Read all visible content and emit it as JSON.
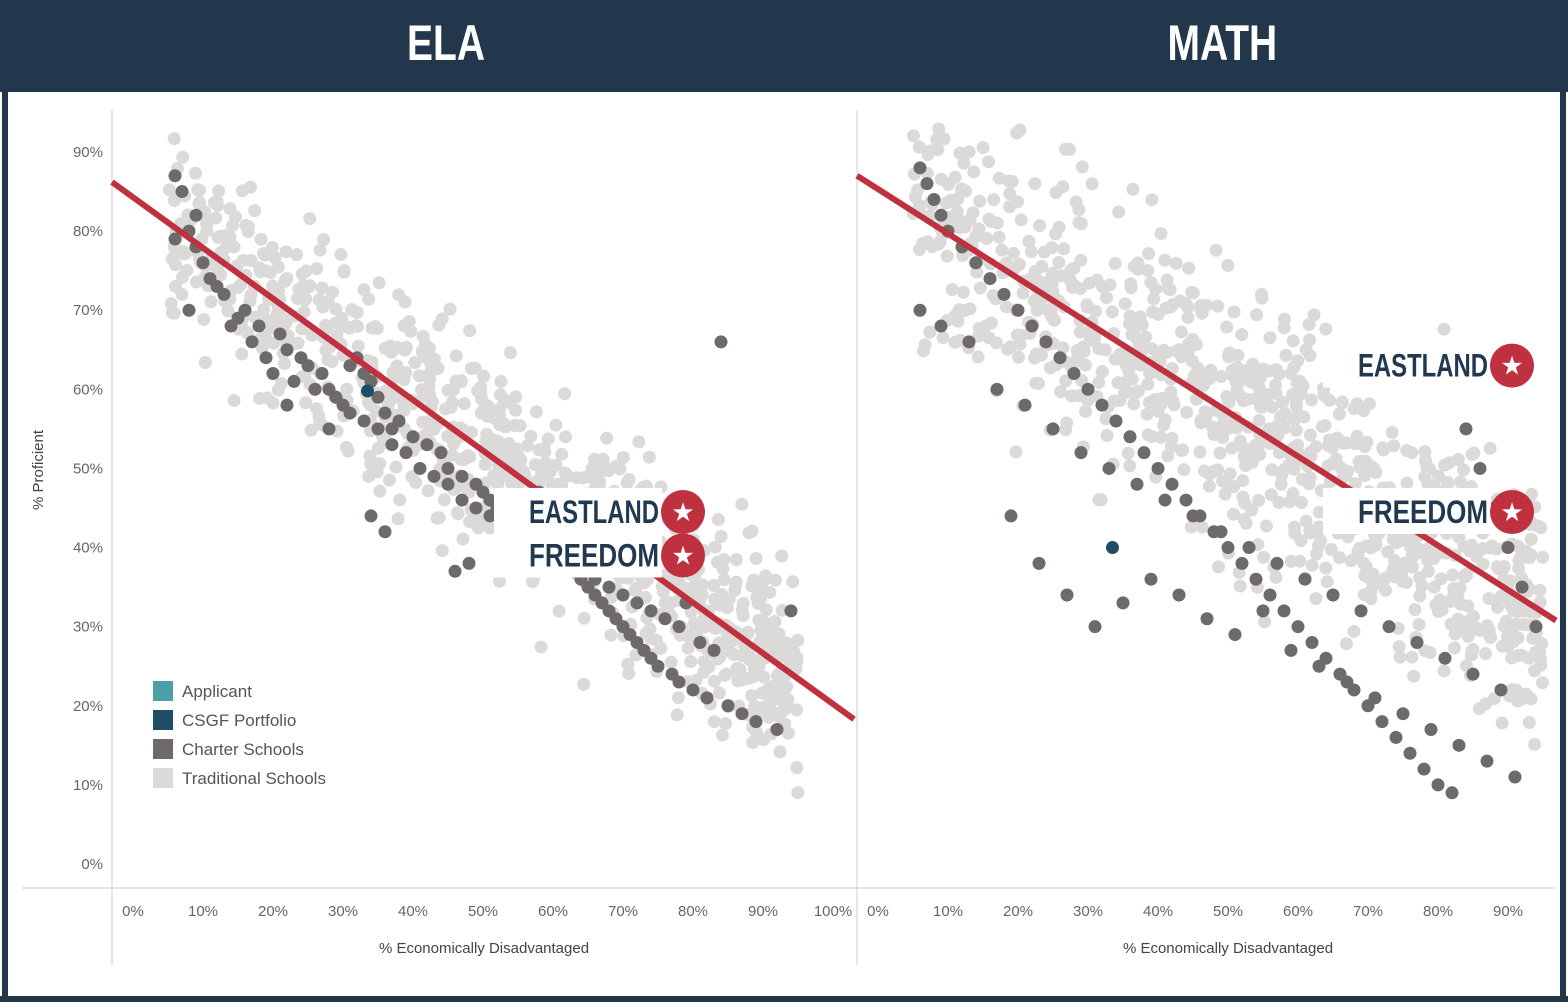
{
  "colors": {
    "header_bg": "#22374c",
    "frame": "#22374c",
    "trend": "#c0313f",
    "applicant": "#4a9fa8",
    "portfolio": "#1e4d66",
    "charter": "#6d6a69",
    "traditional": "#dcd9d9",
    "callout_text": "#223851",
    "star_badge": "#c0313f"
  },
  "header": {
    "left_title": "ELA",
    "right_title": "MATH"
  },
  "legend": [
    {
      "label": "Applicant",
      "color": "#4a9fa8"
    },
    {
      "label": "CSGF Portfolio",
      "color": "#1e4d66"
    },
    {
      "label": "Charter Schools",
      "color": "#6d6a69"
    },
    {
      "label": "Traditional Schools",
      "color": "#dcd9d9"
    }
  ],
  "chart_data": [
    {
      "type": "scatter",
      "title": "ELA",
      "xlabel": "% Economically Disadvantaged",
      "ylabel": "% Proficient",
      "xlim": [
        0,
        100
      ],
      "ylim": [
        0,
        90
      ],
      "x_ticks": [
        "0%",
        "10%",
        "20%",
        "30%",
        "40%",
        "50%",
        "60%",
        "70%",
        "80%",
        "90%",
        "100%"
      ],
      "y_ticks": [
        "0%",
        "10%",
        "20%",
        "30%",
        "40%",
        "50%",
        "60%",
        "70%",
        "80%",
        "90%"
      ],
      "grid": false,
      "legend_position": "bottom-left",
      "trendline": {
        "x": [
          -3,
          103
        ],
        "y": [
          86.2,
          18.3
        ]
      },
      "series": [
        {
          "name": "CSGF Portfolio",
          "x": [
            33.5
          ],
          "y": [
            59.8
          ]
        },
        {
          "name": "Charter Schools",
          "x": [
            6,
            7,
            8,
            9,
            10,
            11,
            13,
            16,
            18,
            21,
            22,
            24,
            25,
            27,
            28,
            29,
            30,
            31,
            32,
            33,
            34,
            35,
            36,
            37,
            38,
            40,
            42,
            44,
            45,
            47,
            49,
            50,
            51,
            52,
            53,
            55,
            57,
            59,
            60,
            61,
            62,
            63,
            64,
            65,
            66,
            67,
            68,
            69,
            70,
            71,
            72,
            73,
            74,
            75,
            77,
            78,
            80,
            82,
            85,
            87,
            89,
            92,
            6,
            9,
            12,
            15,
            17,
            19,
            20,
            23,
            26,
            29,
            31,
            33,
            35,
            37,
            39,
            41,
            43,
            45,
            47,
            49,
            51,
            53,
            55,
            58,
            60,
            62,
            64,
            66,
            68,
            70,
            72,
            74,
            76,
            78,
            81,
            83,
            8,
            14,
            22,
            28,
            34,
            36,
            46,
            48,
            58,
            63,
            71,
            79,
            84,
            94
          ],
          "y": [
            87,
            85,
            80,
            78,
            76,
            74,
            72,
            70,
            68,
            67,
            65,
            64,
            63,
            62,
            60,
            59,
            58,
            63,
            64,
            62,
            61,
            59,
            57,
            55,
            56,
            54,
            53,
            52,
            50,
            49,
            48,
            47,
            46,
            45,
            44,
            43,
            42,
            41,
            40,
            39,
            38,
            37,
            36,
            35,
            34,
            33,
            32,
            31,
            30,
            29,
            28,
            27,
            26,
            25,
            24,
            23,
            22,
            21,
            20,
            19,
            18,
            17,
            79,
            82,
            73,
            69,
            66,
            64,
            62,
            61,
            60,
            59,
            57,
            56,
            55,
            53,
            52,
            50,
            49,
            48,
            46,
            45,
            44,
            42,
            41,
            40,
            39,
            38,
            37,
            36,
            35,
            34,
            33,
            32,
            31,
            30,
            28,
            27,
            70,
            68,
            58,
            55,
            44,
            42,
            37,
            38,
            47,
            41,
            46,
            33,
            66,
            32
          ],
          "color_key": "charter"
        },
        {
          "name": "Traditional Schools",
          "color_key": "traditional",
          "generated": true
        }
      ],
      "callouts": [
        {
          "label": "EASTLAND",
          "x": 78,
          "y": 44.5
        },
        {
          "label": "FREEDOM",
          "x": 78,
          "y": 39.0
        }
      ]
    },
    {
      "type": "scatter",
      "title": "MATH",
      "xlabel": "% Economically Disadvantaged",
      "ylabel": "",
      "xlim": [
        0,
        100
      ],
      "ylim": [
        0,
        90
      ],
      "x_ticks": [
        "0%",
        "10%",
        "20%",
        "30%",
        "40%",
        "50%",
        "60%",
        "70%",
        "80%",
        "90%"
      ],
      "grid": false,
      "trendline": {
        "x": [
          -3,
          100
        ],
        "y": [
          87.0,
          29.0
        ]
      },
      "series": [
        {
          "name": "CSGF Portfolio",
          "x": [
            33.5
          ],
          "y": [
            40.0
          ]
        },
        {
          "name": "Charter Schools",
          "x": [
            6,
            7,
            8,
            9,
            10,
            12,
            14,
            16,
            18,
            20,
            22,
            24,
            26,
            28,
            30,
            32,
            34,
            36,
            38,
            40,
            42,
            44,
            46,
            48,
            50,
            52,
            54,
            56,
            58,
            60,
            62,
            64,
            66,
            68,
            70,
            72,
            74,
            76,
            78,
            80,
            82,
            84,
            86,
            88,
            90,
            92,
            94,
            6,
            9,
            13,
            17,
            21,
            25,
            29,
            33,
            37,
            41,
            45,
            49,
            53,
            57,
            61,
            65,
            69,
            73,
            77,
            81,
            85,
            89,
            19,
            23,
            27,
            31,
            35,
            39,
            43,
            47,
            51,
            55,
            59,
            63,
            67,
            71,
            75,
            79,
            83,
            87,
            91
          ],
          "y": [
            88,
            86,
            84,
            82,
            80,
            78,
            76,
            74,
            72,
            70,
            68,
            66,
            64,
            62,
            60,
            58,
            56,
            54,
            52,
            50,
            48,
            46,
            44,
            42,
            40,
            38,
            36,
            34,
            32,
            30,
            28,
            26,
            24,
            22,
            20,
            18,
            16,
            14,
            12,
            10,
            9,
            55,
            50,
            45,
            40,
            35,
            30,
            70,
            68,
            66,
            60,
            58,
            55,
            52,
            50,
            48,
            46,
            44,
            42,
            40,
            38,
            36,
            34,
            32,
            30,
            28,
            26,
            24,
            22,
            44,
            38,
            34,
            30,
            33,
            36,
            34,
            31,
            29,
            32,
            27,
            25,
            23,
            21,
            19,
            17,
            15,
            13,
            11
          ],
          "color_key": "charter"
        },
        {
          "name": "Traditional Schools",
          "color_key": "traditional",
          "generated": true
        }
      ],
      "callouts": [
        {
          "label": "EASTLAND",
          "x": 90,
          "y": 63.0
        },
        {
          "label": "FREEDOM",
          "x": 90,
          "y": 44.5
        }
      ]
    }
  ]
}
